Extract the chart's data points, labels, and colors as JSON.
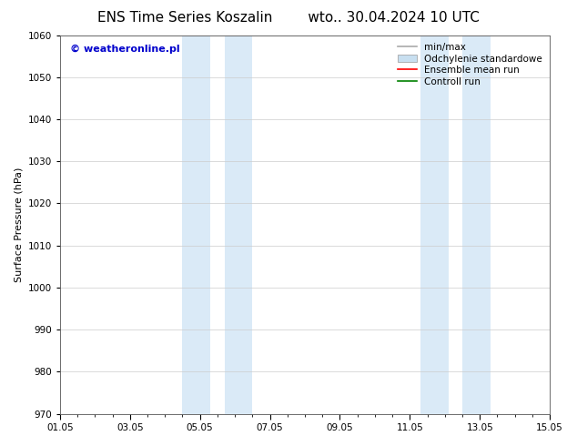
{
  "title_left": "ENS Time Series Koszalin",
  "title_right": "wto.. 30.04.2024 10 UTC",
  "ylabel": "Surface Pressure (hPa)",
  "ylim": [
    970,
    1060
  ],
  "yticks": [
    970,
    980,
    990,
    1000,
    1010,
    1020,
    1030,
    1040,
    1050,
    1060
  ],
  "xlim": [
    0,
    14
  ],
  "xtick_labels": [
    "01.05",
    "03.05",
    "05.05",
    "07.05",
    "09.05",
    "11.05",
    "13.05",
    "15.05"
  ],
  "xtick_positions": [
    0,
    2,
    4,
    6,
    8,
    10,
    12,
    14
  ],
  "shaded_bands": [
    {
      "x_start": 3.5,
      "x_end": 4.3
    },
    {
      "x_start": 4.7,
      "x_end": 5.5
    },
    {
      "x_start": 10.3,
      "x_end": 11.1
    },
    {
      "x_start": 11.5,
      "x_end": 12.3
    }
  ],
  "shade_color": "#daeaf7",
  "watermark_text": "© weatheronline.pl",
  "watermark_color": "#0000cc",
  "legend_entries": [
    {
      "label": "min/max",
      "color": "#aaaaaa",
      "lw": 1.2
    },
    {
      "label": "Odchylenie standardowe",
      "color": "#c8dff0",
      "lw": 6
    },
    {
      "label": "Ensemble mean run",
      "color": "red",
      "lw": 1.2
    },
    {
      "label": "Controll run",
      "color": "green",
      "lw": 1.2
    }
  ],
  "bg_color": "#ffffff",
  "grid_color": "#cccccc",
  "title_fontsize": 11,
  "axis_label_fontsize": 8,
  "tick_fontsize": 7.5,
  "legend_fontsize": 7.5,
  "watermark_fontsize": 8
}
